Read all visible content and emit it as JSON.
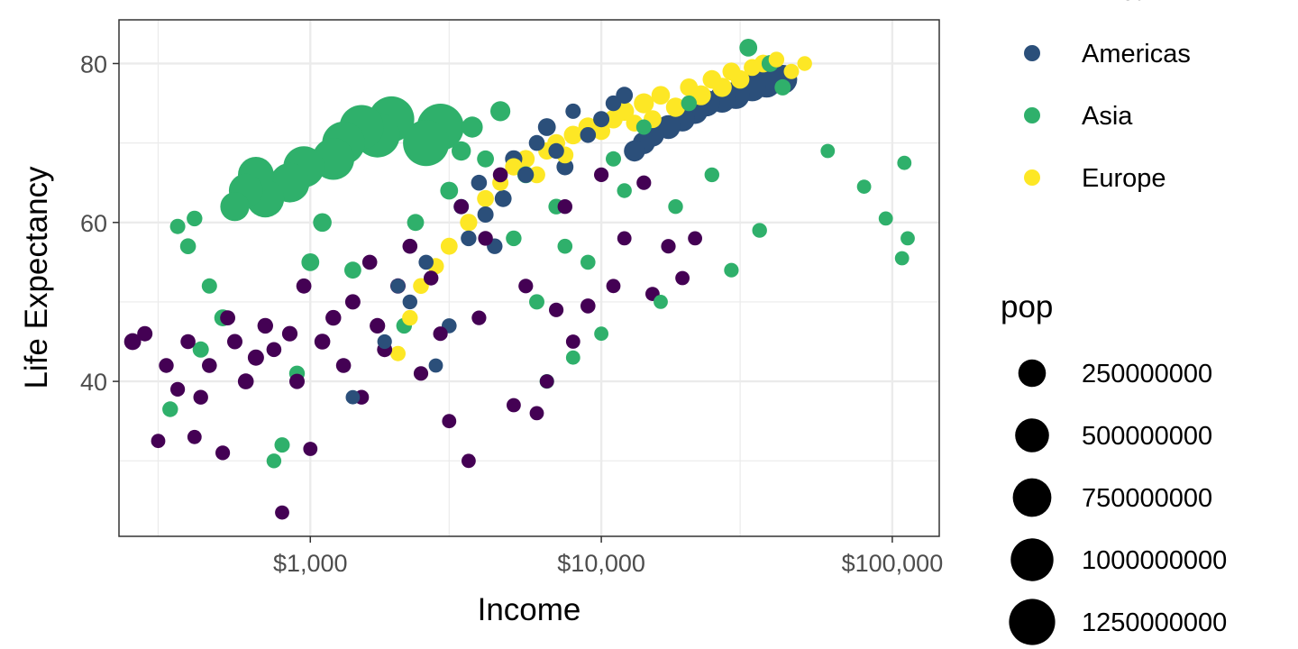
{
  "chart_data": {
    "type": "scatter",
    "xlabel": "Income",
    "ylabel": "Life Expectancy",
    "x_scale": "log10",
    "xlim": [
      220,
      145000
    ],
    "ylim": [
      20.5,
      85.5
    ],
    "x_ticks": [
      {
        "value": 1000,
        "label": "$1,000"
      },
      {
        "value": 10000,
        "label": "$10,000"
      },
      {
        "value": 100000,
        "label": "$100,000"
      }
    ],
    "y_ticks": [
      {
        "value": 40,
        "label": "40"
      },
      {
        "value": 60,
        "label": "60"
      },
      {
        "value": 80,
        "label": "80"
      }
    ],
    "grid": true,
    "legend_position": "right",
    "colour_legend": {
      "entries": [
        {
          "label": "Africa",
          "color": "#440154"
        },
        {
          "label": "Americas",
          "color": "#2b4f7a"
        },
        {
          "label": "Asia",
          "color": "#2fb06b"
        },
        {
          "label": "Europe",
          "color": "#fde725"
        }
      ]
    },
    "size_legend": {
      "title": "pop",
      "entries": [
        {
          "label": "250000000",
          "value": 250000000
        },
        {
          "label": "500000000",
          "value": 500000000
        },
        {
          "label": "750000000",
          "value": 750000000
        },
        {
          "label": "1000000000",
          "value": 1000000000
        },
        {
          "label": "1250000000",
          "value": 1250000000
        }
      ]
    },
    "series": [
      {
        "name": "Africa",
        "color": "#440154",
        "points": [
          [
            245,
            45,
            20000000
          ],
          [
            270,
            46,
            8000000
          ],
          [
            300,
            32.5,
            3000000
          ],
          [
            320,
            42,
            5000000
          ],
          [
            350,
            39,
            4000000
          ],
          [
            380,
            45,
            6000000
          ],
          [
            400,
            33,
            3000000
          ],
          [
            420,
            38,
            5000000
          ],
          [
            450,
            42,
            6000000
          ],
          [
            500,
            31,
            4000000
          ],
          [
            520,
            48,
            7000000
          ],
          [
            550,
            45,
            8000000
          ],
          [
            600,
            40,
            12000000
          ],
          [
            650,
            43,
            15000000
          ],
          [
            700,
            47,
            10000000
          ],
          [
            750,
            44,
            6000000
          ],
          [
            800,
            23.5,
            3000000
          ],
          [
            850,
            46,
            9000000
          ],
          [
            900,
            40,
            8000000
          ],
          [
            950,
            52,
            7000000
          ],
          [
            1000,
            31.5,
            3000000
          ],
          [
            1100,
            45,
            12000000
          ],
          [
            1200,
            48,
            10000000
          ],
          [
            1300,
            42,
            6000000
          ],
          [
            1400,
            50,
            8000000
          ],
          [
            1500,
            38,
            5000000
          ],
          [
            1600,
            55,
            6000000
          ],
          [
            1700,
            47,
            9000000
          ],
          [
            1800,
            44,
            7000000
          ],
          [
            2000,
            52,
            8000000
          ],
          [
            2200,
            57,
            6000000
          ],
          [
            2400,
            41,
            4000000
          ],
          [
            2600,
            53,
            5000000
          ],
          [
            2800,
            46,
            4000000
          ],
          [
            3000,
            35,
            3000000
          ],
          [
            3300,
            62,
            6000000
          ],
          [
            3500,
            30,
            3000000
          ],
          [
            3800,
            48,
            4000000
          ],
          [
            4000,
            58,
            5000000
          ],
          [
            4500,
            66,
            6000000
          ],
          [
            5000,
            37,
            3000000
          ],
          [
            5500,
            52,
            4000000
          ],
          [
            6000,
            36,
            3000000
          ],
          [
            6500,
            40,
            3000000
          ],
          [
            7000,
            49,
            4000000
          ],
          [
            7500,
            62,
            5000000
          ],
          [
            8000,
            45,
            3000000
          ],
          [
            9000,
            49.5,
            6000000
          ],
          [
            10000,
            66,
            4000000
          ],
          [
            11000,
            52,
            3000000
          ],
          [
            12000,
            58,
            3000000
          ],
          [
            14000,
            65,
            4000000
          ],
          [
            15000,
            51,
            3000000
          ],
          [
            17000,
            57,
            4000000
          ],
          [
            19000,
            53,
            3000000
          ],
          [
            21000,
            58,
            3000000
          ]
        ]
      },
      {
        "name": "Americas",
        "color": "#2b4f7a",
        "points": [
          [
            1400,
            38,
            3000000
          ],
          [
            1800,
            45,
            4000000
          ],
          [
            2000,
            52,
            5000000
          ],
          [
            2200,
            50,
            5000000
          ],
          [
            2500,
            55,
            6000000
          ],
          [
            2700,
            42,
            3000000
          ],
          [
            3000,
            47,
            6000000
          ],
          [
            3300,
            62,
            8000000
          ],
          [
            3500,
            58,
            10000000
          ],
          [
            3800,
            65,
            12000000
          ],
          [
            4000,
            61,
            15000000
          ],
          [
            4300,
            57,
            10000000
          ],
          [
            4600,
            63,
            20000000
          ],
          [
            5000,
            68,
            25000000
          ],
          [
            5500,
            66,
            15000000
          ],
          [
            6000,
            70,
            12000000
          ],
          [
            6500,
            72,
            30000000
          ],
          [
            7000,
            69,
            10000000
          ],
          [
            7500,
            67,
            20000000
          ],
          [
            8000,
            74,
            8000000
          ],
          [
            9000,
            71,
            12000000
          ],
          [
            10000,
            73,
            15000000
          ],
          [
            11000,
            75,
            10000000
          ],
          [
            12000,
            76,
            20000000
          ],
          [
            13000,
            69,
            80000000
          ],
          [
            14000,
            70,
            100000000
          ],
          [
            15000,
            71,
            120000000
          ],
          [
            17000,
            72,
            140000000
          ],
          [
            19000,
            73,
            160000000
          ],
          [
            21000,
            74,
            180000000
          ],
          [
            23000,
            75,
            200000000
          ],
          [
            26000,
            75.5,
            220000000
          ],
          [
            29000,
            76,
            240000000
          ],
          [
            33000,
            77,
            260000000
          ],
          [
            37000,
            77.5,
            280000000
          ],
          [
            42000,
            78,
            300000000
          ]
        ]
      },
      {
        "name": "Asia",
        "color": "#2fb06b",
        "points": [
          [
            330,
            36.5,
            10000000
          ],
          [
            350,
            59.5,
            8000000
          ],
          [
            380,
            57,
            12000000
          ],
          [
            400,
            60.5,
            10000000
          ],
          [
            420,
            44,
            15000000
          ],
          [
            450,
            52,
            8000000
          ],
          [
            500,
            48,
            20000000
          ],
          [
            550,
            62,
            300000000
          ],
          [
            600,
            64,
            500000000
          ],
          [
            650,
            66,
            600000000
          ],
          [
            700,
            63,
            700000000
          ],
          [
            750,
            30,
            5000000
          ],
          [
            800,
            32,
            8000000
          ],
          [
            850,
            65,
            800000000
          ],
          [
            900,
            41,
            10000000
          ],
          [
            950,
            67,
            900000000
          ],
          [
            1000,
            55,
            30000000
          ],
          [
            1100,
            60,
            40000000
          ],
          [
            1200,
            68,
            950000000
          ],
          [
            1300,
            70,
            1000000000
          ],
          [
            1400,
            54,
            20000000
          ],
          [
            1500,
            72,
            1100000000
          ],
          [
            1700,
            71,
            1150000000
          ],
          [
            1900,
            73,
            1200000000
          ],
          [
            2100,
            47,
            10000000
          ],
          [
            2300,
            60,
            20000000
          ],
          [
            2500,
            70,
            1250000000
          ],
          [
            2800,
            72,
            1300000000
          ],
          [
            3000,
            64,
            30000000
          ],
          [
            3300,
            69,
            50000000
          ],
          [
            3600,
            72,
            80000000
          ],
          [
            4000,
            68,
            20000000
          ],
          [
            4500,
            74,
            60000000
          ],
          [
            5000,
            58,
            10000000
          ],
          [
            5500,
            66,
            20000000
          ],
          [
            6000,
            50,
            8000000
          ],
          [
            6500,
            40,
            4000000
          ],
          [
            7000,
            62,
            10000000
          ],
          [
            7500,
            57,
            6000000
          ],
          [
            8000,
            43,
            3000000
          ],
          [
            9000,
            55,
            6000000
          ],
          [
            10000,
            46,
            3000000
          ],
          [
            11000,
            68,
            8000000
          ],
          [
            12000,
            64,
            5000000
          ],
          [
            14000,
            72,
            8000000
          ],
          [
            16000,
            50,
            3000000
          ],
          [
            18000,
            62,
            5000000
          ],
          [
            20000,
            75,
            10000000
          ],
          [
            24000,
            66,
            5000000
          ],
          [
            28000,
            54,
            4000000
          ],
          [
            32000,
            82,
            30000000
          ],
          [
            35000,
            59,
            5000000
          ],
          [
            38000,
            80,
            20000000
          ],
          [
            42000,
            77,
            15000000
          ],
          [
            60000,
            69,
            3000000
          ],
          [
            80000,
            64.5,
            3000000
          ],
          [
            95000,
            60.5,
            3000000
          ],
          [
            108000,
            55.5,
            3000000
          ],
          [
            110000,
            67.5,
            3000000
          ],
          [
            113000,
            58,
            3000000
          ]
        ]
      },
      {
        "name": "Europe",
        "color": "#fde725",
        "points": [
          [
            2000,
            43.5,
            8000000
          ],
          [
            2200,
            48,
            10000000
          ],
          [
            2400,
            52,
            12000000
          ],
          [
            2700,
            54.5,
            15000000
          ],
          [
            3000,
            57,
            20000000
          ],
          [
            3500,
            60,
            25000000
          ],
          [
            4000,
            63,
            20000000
          ],
          [
            4500,
            65,
            15000000
          ],
          [
            5000,
            67,
            25000000
          ],
          [
            5500,
            68,
            30000000
          ],
          [
            6000,
            66,
            20000000
          ],
          [
            6500,
            69,
            25000000
          ],
          [
            7000,
            70,
            30000000
          ],
          [
            7500,
            68.5,
            20000000
          ],
          [
            8000,
            71,
            40000000
          ],
          [
            9000,
            72,
            50000000
          ],
          [
            10000,
            71.5,
            30000000
          ],
          [
            11000,
            73,
            40000000
          ],
          [
            12000,
            74,
            50000000
          ],
          [
            13000,
            72.5,
            20000000
          ],
          [
            14000,
            75,
            60000000
          ],
          [
            15000,
            73,
            30000000
          ],
          [
            16000,
            76,
            40000000
          ],
          [
            18000,
            74.5,
            50000000
          ],
          [
            20000,
            77,
            30000000
          ],
          [
            22000,
            76,
            60000000
          ],
          [
            24000,
            78,
            40000000
          ],
          [
            26000,
            77,
            50000000
          ],
          [
            28000,
            79,
            30000000
          ],
          [
            30000,
            78,
            40000000
          ],
          [
            33000,
            79.5,
            20000000
          ],
          [
            36000,
            80,
            30000000
          ],
          [
            40000,
            80.5,
            10000000
          ],
          [
            45000,
            79,
            8000000
          ],
          [
            50000,
            80,
            5000000
          ]
        ]
      }
    ]
  }
}
